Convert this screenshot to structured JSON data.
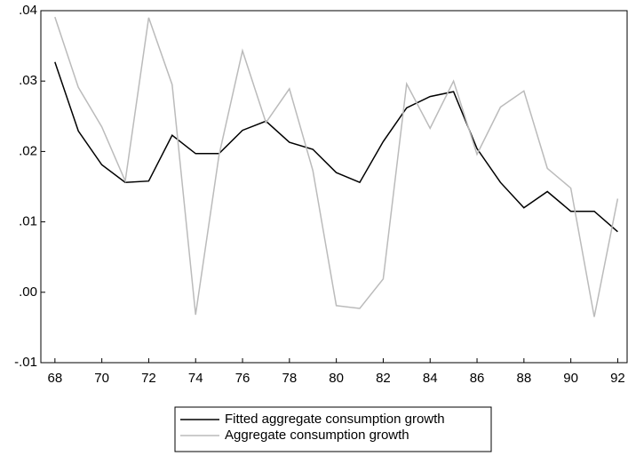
{
  "chart_data": {
    "type": "line",
    "x": [
      68,
      69,
      70,
      71,
      72,
      73,
      74,
      75,
      76,
      77,
      78,
      79,
      80,
      81,
      82,
      83,
      84,
      85,
      86,
      87,
      88,
      89,
      90,
      91,
      92
    ],
    "series": [
      {
        "name": "Fitted aggregate consumption growth",
        "color": "#000000",
        "values": [
          0.0327,
          0.0229,
          0.0181,
          0.0156,
          0.0158,
          0.0223,
          0.0197,
          0.0197,
          0.023,
          0.0243,
          0.0213,
          0.0203,
          0.017,
          0.0156,
          0.0214,
          0.0262,
          0.0278,
          0.0285,
          0.0204,
          0.0156,
          0.012,
          0.0143,
          0.0115,
          0.0115,
          0.0086
        ]
      },
      {
        "name": "Aggregate consumption growth",
        "color": "#bbbbbb",
        "values": [
          0.0391,
          0.0291,
          0.0235,
          0.0158,
          0.039,
          0.0295,
          -0.0032,
          0.0195,
          0.0343,
          0.0241,
          0.0289,
          0.0173,
          -0.0019,
          -0.0023,
          0.0019,
          0.0296,
          0.0233,
          0.03,
          0.0196,
          0.0263,
          0.0286,
          0.0176,
          0.0148,
          -0.0035,
          0.0133
        ]
      }
    ],
    "xlim": [
      67.4,
      92.4
    ],
    "xticks": [
      68,
      70,
      72,
      74,
      76,
      78,
      80,
      82,
      84,
      86,
      88,
      90,
      92
    ],
    "ylim": [
      -0.01,
      0.04
    ],
    "yticks": [
      {
        "value": -0.01,
        "label": "-.01"
      },
      {
        "value": 0,
        "label": ".00"
      },
      {
        "value": 0.01,
        "label": ".01"
      },
      {
        "value": 0.02,
        "label": ".02"
      },
      {
        "value": 0.03,
        "label": ".03"
      },
      {
        "value": 0.04,
        "label": ".04"
      }
    ],
    "grid": false,
    "legend": "bottom"
  }
}
